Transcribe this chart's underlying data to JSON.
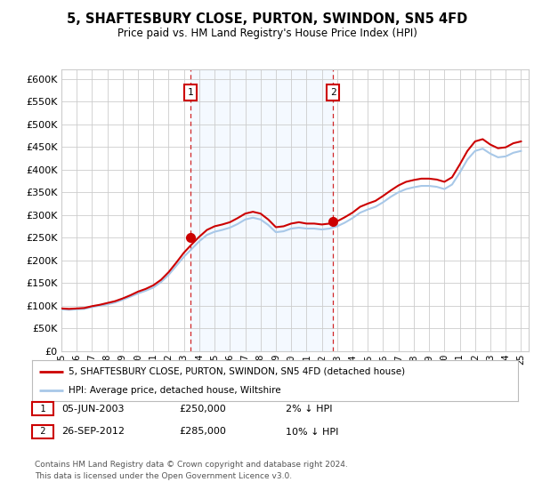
{
  "title": "5, SHAFTESBURY CLOSE, PURTON, SWINDON, SN5 4FD",
  "subtitle": "Price paid vs. HM Land Registry's House Price Index (HPI)",
  "ylim": [
    0,
    620000
  ],
  "yticks": [
    0,
    50000,
    100000,
    150000,
    200000,
    250000,
    300000,
    350000,
    400000,
    450000,
    500000,
    550000,
    600000
  ],
  "xmin": 1995.0,
  "xmax": 2025.5,
  "purchase1_x": 2003.43,
  "purchase1_y": 250000,
  "purchase1_label": "1",
  "purchase2_x": 2012.73,
  "purchase2_y": 285000,
  "purchase2_label": "2",
  "legend_line1": "5, SHAFTESBURY CLOSE, PURTON, SWINDON, SN5 4FD (detached house)",
  "legend_line2": "HPI: Average price, detached house, Wiltshire",
  "footer": "Contains HM Land Registry data © Crown copyright and database right 2024.\nThis data is licensed under the Open Government Licence v3.0.",
  "hpi_color": "#a8c8e8",
  "price_color": "#cc0000",
  "shade_color": "#ddeeff",
  "vline_color": "#cc0000",
  "bg_color": "#ffffff",
  "grid_color": "#cccccc",
  "years_hpi": [
    1995.0,
    1995.5,
    1996.0,
    1996.5,
    1997.0,
    1997.5,
    1998.0,
    1998.5,
    1999.0,
    1999.5,
    2000.0,
    2000.5,
    2001.0,
    2001.5,
    2002.0,
    2002.5,
    2003.0,
    2003.5,
    2004.0,
    2004.5,
    2005.0,
    2005.5,
    2006.0,
    2006.5,
    2007.0,
    2007.5,
    2008.0,
    2008.5,
    2009.0,
    2009.5,
    2010.0,
    2010.5,
    2011.0,
    2011.5,
    2012.0,
    2012.5,
    2013.0,
    2013.5,
    2014.0,
    2014.5,
    2015.0,
    2015.5,
    2016.0,
    2016.5,
    2017.0,
    2017.5,
    2018.0,
    2018.5,
    2019.0,
    2019.5,
    2020.0,
    2020.5,
    2021.0,
    2021.5,
    2022.0,
    2022.5,
    2023.0,
    2023.5,
    2024.0,
    2024.5,
    2025.0
  ],
  "hpi_values": [
    92000,
    91000,
    92000,
    93000,
    97000,
    100000,
    103000,
    107000,
    113000,
    120000,
    127000,
    133000,
    140000,
    152000,
    168000,
    188000,
    208000,
    225000,
    242000,
    256000,
    263000,
    267000,
    272000,
    280000,
    290000,
    294000,
    290000,
    278000,
    262000,
    264000,
    270000,
    272000,
    270000,
    270000,
    268000,
    270000,
    275000,
    283000,
    293000,
    305000,
    312000,
    318000,
    328000,
    340000,
    350000,
    357000,
    361000,
    364000,
    364000,
    362000,
    357000,
    367000,
    393000,
    422000,
    441000,
    446000,
    435000,
    427000,
    429000,
    437000,
    441000
  ],
  "price_values": [
    94000,
    93000,
    94000,
    95000,
    99000,
    102000,
    106000,
    110000,
    116000,
    123000,
    131000,
    137000,
    145000,
    157000,
    174000,
    195000,
    217000,
    235000,
    252000,
    267000,
    275000,
    279000,
    284000,
    293000,
    303000,
    307000,
    303000,
    290000,
    273000,
    275000,
    281000,
    284000,
    281000,
    281000,
    279000,
    281000,
    286000,
    295000,
    305000,
    318000,
    325000,
    331000,
    342000,
    354000,
    365000,
    373000,
    377000,
    380000,
    380000,
    378000,
    373000,
    383000,
    411000,
    441000,
    462000,
    467000,
    455000,
    447000,
    449000,
    458000,
    462000
  ]
}
